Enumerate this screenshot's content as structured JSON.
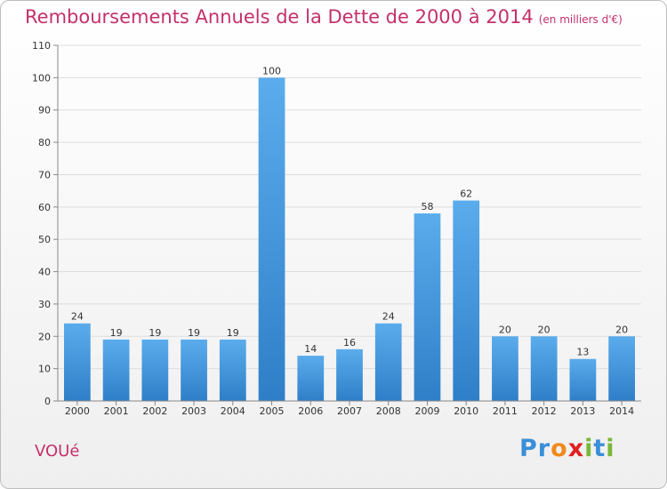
{
  "chart_data": {
    "type": "bar",
    "title": "Remboursements Annuels de la Dette de 2000 à 2014",
    "subtitle": "(en milliers d'€)",
    "categories": [
      "2000",
      "2001",
      "2002",
      "2003",
      "2004",
      "2005",
      "2006",
      "2007",
      "2008",
      "2009",
      "2010",
      "2011",
      "2012",
      "2013",
      "2014"
    ],
    "values": [
      24,
      19,
      19,
      19,
      19,
      100,
      14,
      16,
      24,
      58,
      62,
      20,
      20,
      13,
      20
    ],
    "ylim": [
      0,
      110
    ],
    "yticks": [
      0,
      10,
      20,
      30,
      40,
      50,
      60,
      70,
      80,
      90,
      100,
      110
    ],
    "grid": true,
    "colors": {
      "bar_light": "#5aacec",
      "bar_dark": "#2f7fc8",
      "title": "#c4306a"
    }
  },
  "commune": "VOUé",
  "brand": {
    "letters": [
      {
        "ch": "P",
        "color": "#3a8fd8"
      },
      {
        "ch": "r",
        "color": "#3a8fd8"
      },
      {
        "ch": "o",
        "color": "#f08a1c"
      },
      {
        "ch": "x",
        "color": "#e02020"
      },
      {
        "ch": "i",
        "color": "#78b83a"
      },
      {
        "ch": "t",
        "color": "#3a8fd8"
      },
      {
        "ch": "i",
        "color": "#78b83a"
      }
    ]
  }
}
